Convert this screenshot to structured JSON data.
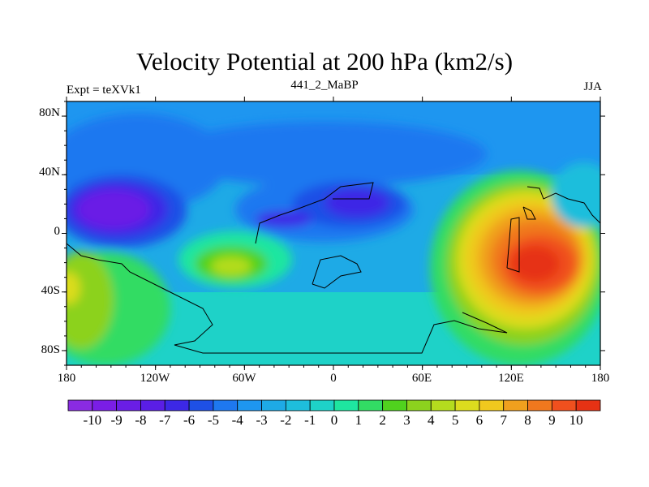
{
  "chart_data": {
    "type": "heatmap",
    "title": "Velocity Potential at 200 hPa (km2/s)",
    "left_string": "Expt = teXVk1",
    "center_string": "441_2_MaBP",
    "right_string": "JJA",
    "x_ticks": [
      "180",
      "120W",
      "60W",
      "0",
      "60E",
      "120E",
      "180"
    ],
    "y_ticks": [
      "80N",
      "40N",
      "0",
      "40S",
      "80S"
    ],
    "xlim": [
      -180,
      180
    ],
    "ylim": [
      -90,
      90
    ],
    "colorbar_labels": [
      "-10",
      "-9",
      "-8",
      "-7",
      "-6",
      "-5",
      "-4",
      "-3",
      "-2",
      "-1",
      "0",
      "1",
      "2",
      "3",
      "4",
      "5",
      "6",
      "7",
      "8",
      "9",
      "10"
    ],
    "colorbar_colors": [
      "#8a2be2",
      "#7a1ee6",
      "#6a1ee6",
      "#5a1ee6",
      "#3c28e6",
      "#1e50e6",
      "#1e78f0",
      "#1e96f0",
      "#1eaae6",
      "#1ebedc",
      "#1ed2c8",
      "#1ee6a0",
      "#32dc64",
      "#50d21e",
      "#8cd21e",
      "#b4dc1e",
      "#dcdc1e",
      "#f0c81e",
      "#f0a01e",
      "#f0781e",
      "#f0501e",
      "#e63214"
    ],
    "highs": [
      {
        "lon": 130,
        "lat": -25,
        "value": 10
      },
      {
        "lon": -145,
        "lat": 12,
        "value": -9
      },
      {
        "lon": 20,
        "lat": 15,
        "value": -7
      },
      {
        "lon": -50,
        "lat": -25,
        "value": 3
      },
      {
        "lon": -170,
        "lat": -40,
        "value": 5
      }
    ]
  }
}
